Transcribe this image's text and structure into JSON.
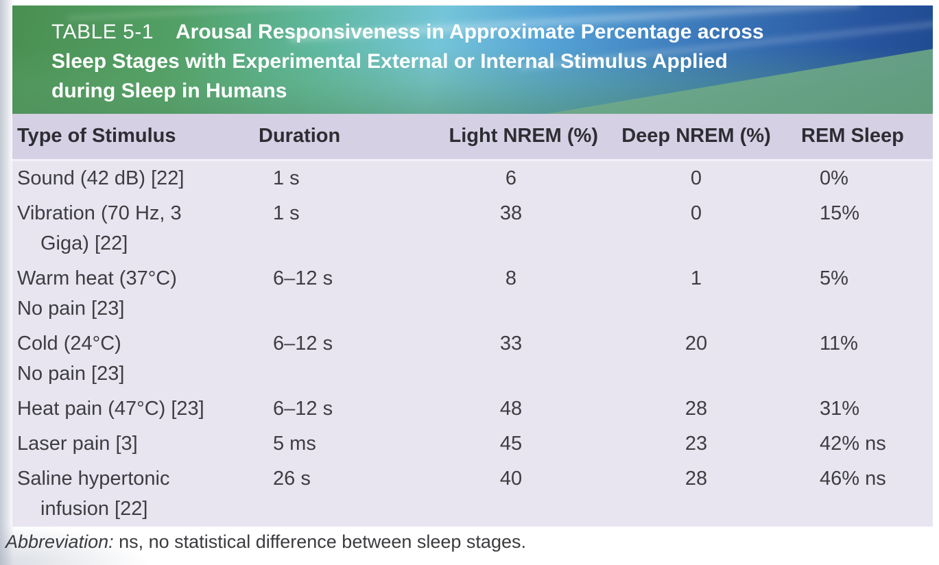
{
  "table_card": {
    "label": "TABLE 5-1",
    "title_lines": [
      "Arousal Responsiveness in Approximate Percentage across",
      "Sleep Stages with Experimental External or Internal Stimulus Applied",
      "during Sleep in Humans"
    ],
    "columns": [
      "Type of Stimulus",
      "Duration",
      "Light NREM (%)",
      "Deep NREM (%)",
      "REM Sleep"
    ],
    "rows": [
      {
        "stimulus_lines": [
          {
            "text": "Sound (42 dB) [22]",
            "indent": false
          }
        ],
        "duration": "1 s",
        "light_nrem": "6",
        "deep_nrem": "0",
        "rem_sleep": "0%"
      },
      {
        "stimulus_lines": [
          {
            "text": "Vibration (70 Hz, 3",
            "indent": false
          },
          {
            "text": "Giga) [22]",
            "indent": true
          }
        ],
        "duration": "1 s",
        "light_nrem": "38",
        "deep_nrem": "0",
        "rem_sleep": "15%"
      },
      {
        "stimulus_lines": [
          {
            "text": "Warm heat (37°C)",
            "indent": false
          },
          {
            "text": "No pain [23]",
            "indent": false
          }
        ],
        "duration": "6–12 s",
        "light_nrem": "8",
        "deep_nrem": "1",
        "rem_sleep": "5%"
      },
      {
        "stimulus_lines": [
          {
            "text": "Cold (24°C)",
            "indent": false
          },
          {
            "text": "No pain [23]",
            "indent": false
          }
        ],
        "duration": "6–12 s",
        "light_nrem": "33",
        "deep_nrem": "20",
        "rem_sleep": "11%"
      },
      {
        "stimulus_lines": [
          {
            "text": "Heat pain (47°C) [23]",
            "indent": false
          }
        ],
        "duration": "6–12 s",
        "light_nrem": "48",
        "deep_nrem": "28",
        "rem_sleep": "31%"
      },
      {
        "stimulus_lines": [
          {
            "text": "Laser pain [3]",
            "indent": false
          }
        ],
        "duration": "5 ms",
        "light_nrem": "45",
        "deep_nrem": "23",
        "rem_sleep": "42% ns"
      },
      {
        "stimulus_lines": [
          {
            "text": "Saline hypertonic",
            "indent": false
          },
          {
            "text": "infusion [22]",
            "indent": true
          }
        ],
        "duration": "26 s",
        "light_nrem": "40",
        "deep_nrem": "28",
        "rem_sleep": "46% ns"
      }
    ],
    "footnote_label": "Abbreviation:",
    "footnote_text": "ns, no statistical difference between sleep stages."
  },
  "colors": {
    "band_green": "#4a8f51",
    "band_blue": "#27549e",
    "band_wedge_green": "#7ab696",
    "header_row_bg": "#d5d0e3",
    "body_bg": "#e8e5f1",
    "title_text": "#ffffff",
    "body_text": "#3d3d41"
  }
}
